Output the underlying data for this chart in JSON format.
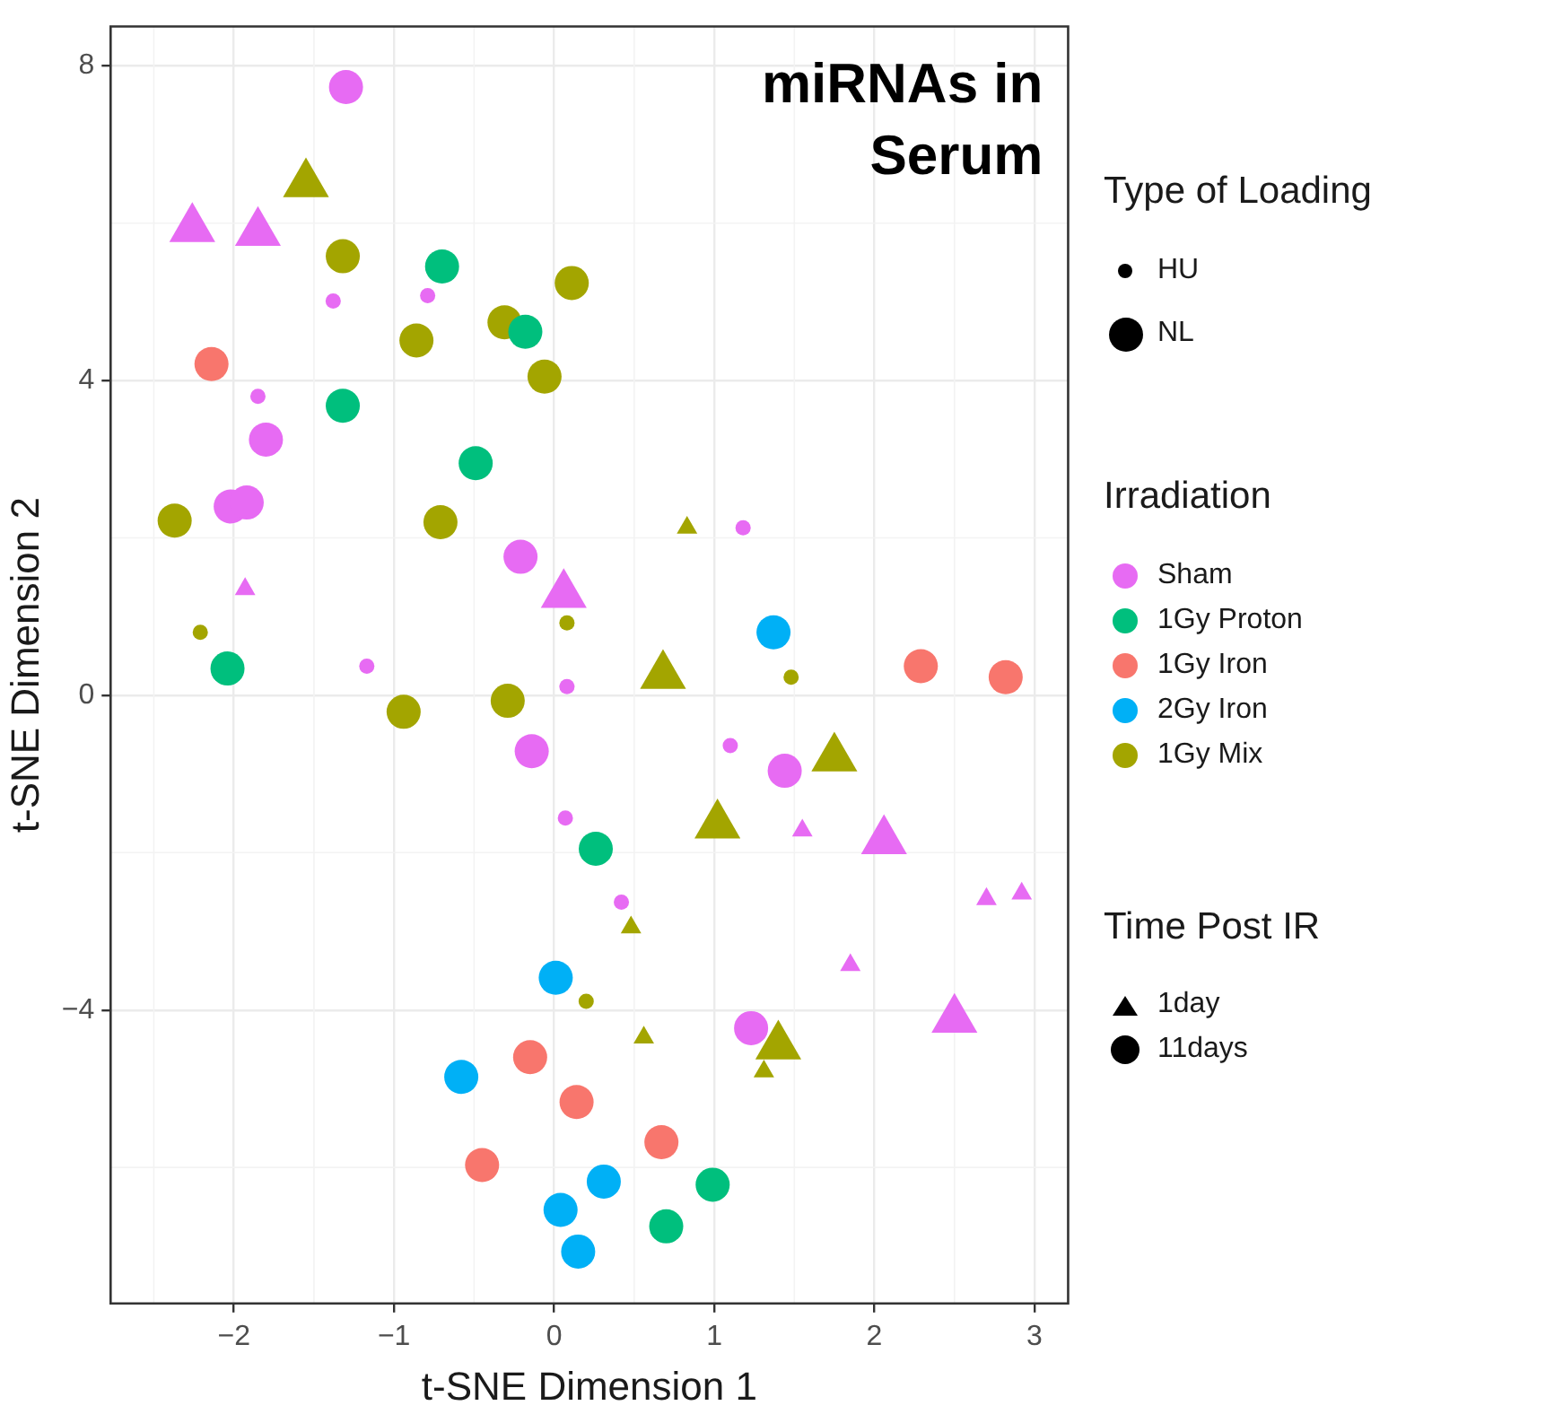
{
  "chart_data": {
    "type": "bubble",
    "title": "miRNAs in Serum",
    "xlabel": "t-SNE Dimension 1",
    "ylabel": "t-SNE Dimension 2",
    "xlim": [
      -2.77,
      3.21
    ],
    "xticks": [
      -2,
      -1,
      0,
      1,
      2,
      3
    ],
    "ylim": [
      -7.73,
      8.5
    ],
    "yticks": [
      -4,
      0,
      4,
      8
    ],
    "grid": true,
    "legend": "right",
    "legend_title": "Irradiation",
    "size_legend": [
      {
        "value": 0.2,
        "label": "HU"
      },
      {
        "value": 1,
        "label": "NL"
      }
    ],
    "annotations": [
      "Type of Loading",
      "Time Post IR",
      "1day",
      "11days"
    ],
    "series": [
      {
        "name": "Sham",
        "color": "#e76bf3",
        "marker": "circle",
        "x": [
          -1.3,
          -1.8,
          -2.02,
          -1.92,
          -0.21,
          -0.14,
          1.44,
          1.23,
          -1.38,
          -0.79,
          -1.85,
          -1.17,
          1.18,
          0.08,
          1.1,
          0.07,
          0.42
        ],
        "values": [
          7.73,
          3.25,
          2.4,
          2.45,
          1.76,
          -0.71,
          -0.96,
          -4.23,
          5.01,
          5.08,
          3.8,
          0.37,
          2.13,
          0.11,
          -0.64,
          -1.56,
          -2.63
        ],
        "sizes": [
          1,
          1,
          1,
          1,
          1,
          1,
          1,
          1,
          0.2,
          0.2,
          0.2,
          0.2,
          0.2,
          0.2,
          0.2,
          0.2,
          0.2
        ]
      },
      {
        "name": "1Gy Proton",
        "color": "#00bf7d",
        "marker": "circle",
        "x": [
          -0.7,
          -0.18,
          -1.32,
          -0.49,
          -2.04,
          0.26,
          0.99,
          0.7
        ],
        "values": [
          5.45,
          4.62,
          3.68,
          2.95,
          0.34,
          -1.95,
          -6.22,
          -6.75
        ],
        "sizes": [
          1,
          1,
          1,
          1,
          1,
          1,
          1,
          1
        ]
      },
      {
        "name": "1Gy Iron",
        "color": "#f8766d",
        "marker": "circle",
        "x": [
          -2.14,
          2.29,
          2.82,
          -0.15,
          0.14,
          0.67,
          -0.45
        ],
        "values": [
          4.21,
          0.37,
          0.23,
          -4.6,
          -5.17,
          -5.68,
          -5.97
        ],
        "sizes": [
          1,
          1,
          1,
          1,
          1,
          1,
          1
        ]
      },
      {
        "name": "2Gy Iron",
        "color": "#00b0f6",
        "marker": "circle",
        "x": [
          1.37,
          0.01,
          -0.58,
          0.31,
          0.04,
          0.15
        ],
        "values": [
          0.8,
          -3.59,
          -4.85,
          -6.18,
          -6.54,
          -7.07
        ],
        "sizes": [
          1,
          1,
          1,
          1,
          1,
          1
        ]
      },
      {
        "name": "1Gy Mix",
        "color": "#a3a500",
        "marker": "circle",
        "x": [
          -1.32,
          -0.86,
          -0.31,
          0.11,
          -0.06,
          -2.37,
          -0.71,
          -0.94,
          -0.29,
          -2.21,
          0.08,
          1.48,
          0.2
        ],
        "values": [
          5.58,
          4.51,
          4.74,
          5.24,
          4.05,
          2.22,
          2.2,
          -0.21,
          -0.07,
          0.8,
          0.92,
          0.23,
          -3.89
        ],
        "sizes": [
          1,
          1,
          1,
          1,
          1,
          1,
          1,
          1,
          1,
          0.2,
          0.2,
          0.2,
          0.2
        ]
      },
      {
        "color": "#e76bf3",
        "marker": "triangle",
        "x": [
          -2.26,
          -1.85,
          0.06,
          2.06,
          2.5,
          -1.93,
          1.55,
          1.85,
          2.7,
          2.92
        ],
        "values": [
          5.93,
          5.88,
          1.28,
          -1.85,
          -4.12,
          1.35,
          -1.72,
          -3.43,
          -2.59,
          -2.52
        ],
        "sizes": [
          1,
          1,
          1,
          1,
          1,
          0.2,
          0.2,
          0.2,
          0.2,
          0.2
        ]
      },
      {
        "color": "#a3a500",
        "marker": "triangle",
        "x": [
          -1.55,
          0.68,
          1.75,
          1.02,
          1.4,
          0.48,
          0.56,
          1.31,
          0.83
        ],
        "values": [
          6.5,
          0.25,
          -0.8,
          -1.65,
          -4.46,
          -2.95,
          -4.35,
          -4.78,
          2.13
        ],
        "sizes": [
          1,
          1,
          1,
          1,
          1,
          0.2,
          0.2,
          0.2,
          0.2
        ]
      }
    ]
  }
}
